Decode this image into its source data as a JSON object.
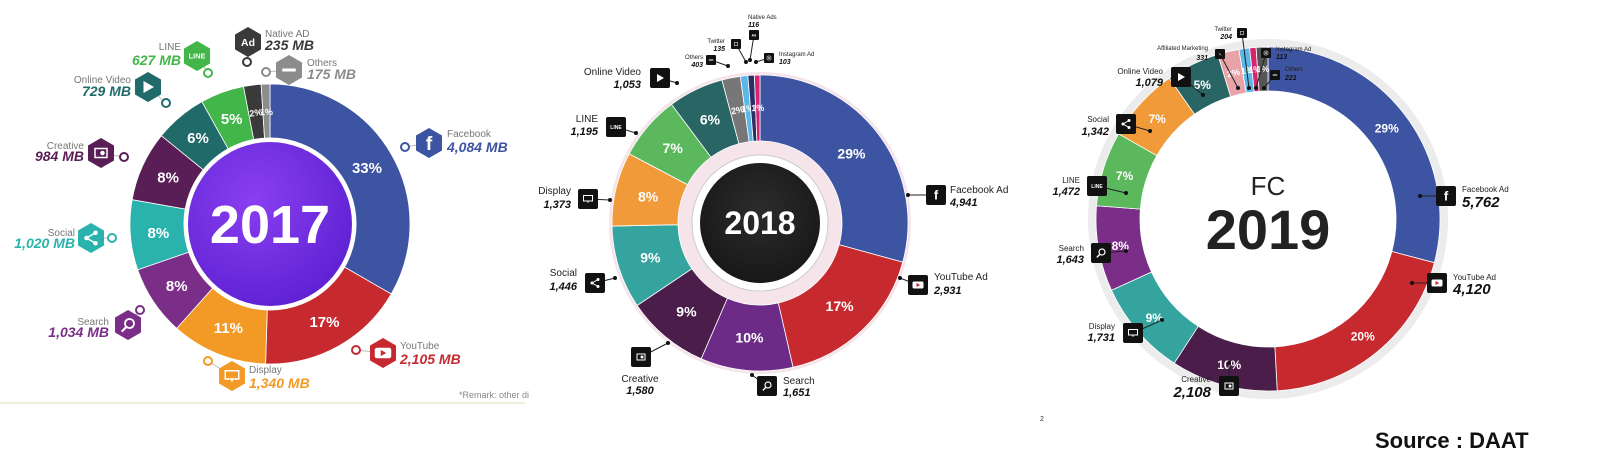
{
  "page": {
    "source": "Source : DAAT",
    "page_number": "2"
  },
  "chart_data": [
    {
      "type": "pie",
      "title": "2017",
      "unit": "MB",
      "remark": "*Remark: other di",
      "slices": [
        {
          "name": "Facebook",
          "value": "4,084 MB",
          "percent": 33,
          "label": "33%",
          "color": "#3d54a3",
          "icon": "facebook-icon"
        },
        {
          "name": "YouTube",
          "value": "2,105 MB",
          "percent": 17,
          "label": "17%",
          "color": "#c62a2f",
          "icon": "youtube-icon"
        },
        {
          "name": "Display",
          "value": "1,340 MB",
          "percent": 11,
          "label": "11%",
          "color": "#f39a26",
          "icon": "display-icon"
        },
        {
          "name": "Search",
          "value": "1,034 MB",
          "percent": 8,
          "label": "8%",
          "color": "#7a2e87",
          "icon": "search-icon"
        },
        {
          "name": "Social",
          "value": "1,020 MB",
          "percent": 8,
          "label": "8%",
          "color": "#2ab3ad",
          "icon": "share-icon"
        },
        {
          "name": "Creative",
          "value": "984 MB",
          "percent": 8,
          "label": "8%",
          "color": "#5a1e56",
          "icon": "creative-icon"
        },
        {
          "name": "Online Video",
          "value": "729 MB",
          "percent": 6,
          "label": "6%",
          "color": "#216a6a",
          "icon": "play-icon"
        },
        {
          "name": "LINE",
          "value": "627 MB",
          "percent": 5,
          "label": "5%",
          "color": "#42b649",
          "icon": "line-icon"
        },
        {
          "name": "Native AD",
          "value": "235 MB",
          "percent": 2,
          "label": "2%",
          "color": "#3a3a3a",
          "icon": "ad-icon"
        },
        {
          "name": "Others",
          "value": "175 MB",
          "percent": 1,
          "label": "1%",
          "color": "#8c8c8c",
          "icon": "others-icon"
        }
      ]
    },
    {
      "type": "pie",
      "title": "2018",
      "unit": "MB",
      "slices": [
        {
          "name": "Facebook Ad",
          "value": "4,941",
          "percent": 29,
          "label": "29%",
          "color": "#3d54a3",
          "icon": "facebook-icon"
        },
        {
          "name": "YouTube Ad",
          "value": "2,931",
          "percent": 17,
          "label": "17%",
          "color": "#c62a2f",
          "icon": "youtube-icon"
        },
        {
          "name": "Search",
          "value": "1,651",
          "percent": 10,
          "label": "10%",
          "color": "#6b2b86",
          "icon": "search-icon"
        },
        {
          "name": "Creative",
          "value": "1,580",
          "percent": 9,
          "label": "9%",
          "color": "#4a1d4a",
          "icon": "creative-icon"
        },
        {
          "name": "Social",
          "value": "1,446",
          "percent": 9,
          "label": "9%",
          "color": "#35a49f",
          "icon": "share-icon"
        },
        {
          "name": "Display",
          "value": "1,373",
          "percent": 8,
          "label": "8%",
          "color": "#f09a3a",
          "icon": "display-icon"
        },
        {
          "name": "LINE",
          "value": "1,195",
          "percent": 7,
          "label": "7%",
          "color": "#5cb85c",
          "icon": "line-icon"
        },
        {
          "name": "Online Video",
          "value": "1,053",
          "percent": 6,
          "label": "6%",
          "color": "#2a6565",
          "icon": "play-icon"
        },
        {
          "name": "Others",
          "value": "403",
          "percent": 2,
          "label": "2%",
          "color": "#777777",
          "icon": "others-icon"
        },
        {
          "name": "Twitter",
          "value": "135",
          "percent": 0.8,
          "label": "1%",
          "color": "#5bb7e6",
          "icon": "twitter-icon"
        },
        {
          "name": "Native Ads",
          "value": "116",
          "percent": 0.7,
          "label": "",
          "color": "#2a2f6a",
          "icon": "ad-icon"
        },
        {
          "name": "Instagram Ad",
          "value": "103",
          "percent": 0.6,
          "label": "1%",
          "color": "#d6246e",
          "icon": "instagram-icon"
        }
      ]
    },
    {
      "type": "pie",
      "title": "2019",
      "subtitle": "FC",
      "unit": "MB",
      "slices": [
        {
          "name": "Facebook Ad",
          "value": "5,762",
          "percent": 29,
          "label": "29%",
          "color": "#3d54a3",
          "icon": "facebook-icon"
        },
        {
          "name": "YouTube Ad",
          "value": "4,120",
          "percent": 20,
          "label": "20%",
          "color": "#c62a2f",
          "icon": "youtube-icon"
        },
        {
          "name": "Creative",
          "value": "2,108",
          "percent": 10,
          "label": "10%",
          "color": "#4a1d4a",
          "icon": "creative-icon"
        },
        {
          "name": "Display",
          "value": "1,731",
          "percent": 9,
          "label": "9%",
          "color": "#35a49f",
          "icon": "display-icon"
        },
        {
          "name": "Search",
          "value": "1,643",
          "percent": 8,
          "label": "8%",
          "color": "#7a2e87",
          "icon": "search-icon"
        },
        {
          "name": "LINE",
          "value": "1,472",
          "percent": 7,
          "label": "7%",
          "color": "#5cb85c",
          "icon": "line-icon"
        },
        {
          "name": "Social",
          "value": "1,342",
          "percent": 7,
          "label": "7%",
          "color": "#f09a3a",
          "icon": "share-icon"
        },
        {
          "name": "Online Video",
          "value": "1,079",
          "percent": 5,
          "label": "5%",
          "color": "#2a6565",
          "icon": "play-icon"
        },
        {
          "name": "Affiliated Marketing",
          "value": "331",
          "percent": 2,
          "label": "2%",
          "color": "#e8a3a8",
          "icon": "affiliate-icon"
        },
        {
          "name": "Twitter",
          "value": "204",
          "percent": 1,
          "label": "1%",
          "color": "#5bb7e6",
          "icon": "twitter-icon"
        },
        {
          "name": "Instagram Ad",
          "value": "113",
          "percent": 0.6,
          "label": "1%",
          "color": "#d6246e",
          "icon": "instagram-icon"
        },
        {
          "name": "Others",
          "value": "221",
          "percent": 1.1,
          "label": "1%",
          "color": "#555555",
          "icon": "others-icon"
        }
      ]
    }
  ]
}
